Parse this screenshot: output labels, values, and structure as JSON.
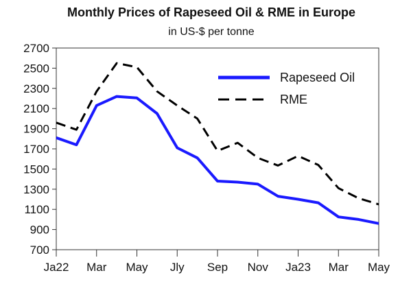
{
  "chart_data": {
    "type": "line",
    "title": "Monthly Prices of Rapeseed Oil & RME in Europe",
    "subtitle": "in US-$ per tonne",
    "xlabel": "",
    "ylabel": "",
    "x_ticks": [
      "Ja22",
      "Mar",
      "May",
      "Jly",
      "Sep",
      "Nov",
      "Ja23",
      "Mar",
      "May"
    ],
    "ylim": [
      700,
      2700
    ],
    "y_ticks": [
      700,
      900,
      1100,
      1300,
      1500,
      1700,
      1900,
      2100,
      2300,
      2500,
      2700
    ],
    "grid": false,
    "legend_position": "top-right",
    "series": [
      {
        "name": "Rapeseed Oil",
        "color": "#1a1aff",
        "style": "solid",
        "values": [
          1810,
          1740,
          2130,
          2220,
          2205,
          2050,
          1710,
          1610,
          1380,
          1370,
          1350,
          1230,
          1200,
          1165,
          1025,
          1000,
          960
        ]
      },
      {
        "name": "RME",
        "color": "#000000",
        "style": "dashed",
        "values": [
          1960,
          1890,
          2270,
          2550,
          2510,
          2270,
          2130,
          2000,
          1680,
          1760,
          1610,
          1535,
          1630,
          1540,
          1310,
          1210,
          1150
        ]
      }
    ]
  }
}
